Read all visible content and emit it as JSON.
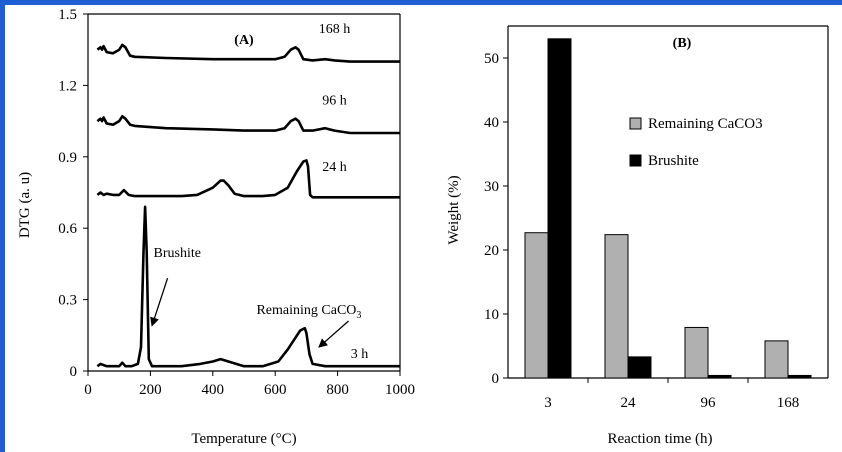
{
  "colors": {
    "frame": "#1f5fd6",
    "curve": "#000000",
    "remaining_bar": "#b0b0b0",
    "brushite_bar": "#000000"
  },
  "chart_data": [
    {
      "type": "line",
      "panel_label": "(A)",
      "xlabel": "Temperature (°C)",
      "ylabel": "DTG (a. u)",
      "xlim": [
        0,
        1000
      ],
      "ylim": [
        0,
        1.5
      ],
      "xticks": [
        "0",
        "200",
        "400",
        "600",
        "800",
        "1000"
      ],
      "yticks": [
        "0",
        "0.3",
        "0.6",
        "0.9",
        "1.2",
        "1.5"
      ],
      "grid": false,
      "series": [
        {
          "name": "3 h",
          "x": [
            30,
            40,
            50,
            60,
            80,
            100,
            110,
            120,
            140,
            160,
            170,
            178,
            183,
            188,
            195,
            205,
            230,
            300,
            360,
            400,
            425,
            450,
            500,
            560,
            610,
            640,
            660,
            680,
            695,
            700,
            710,
            720,
            760,
            840,
            1000
          ],
          "y": [
            0.02,
            0.03,
            0.025,
            0.02,
            0.02,
            0.02,
            0.035,
            0.02,
            0.02,
            0.03,
            0.1,
            0.5,
            0.69,
            0.5,
            0.05,
            0.02,
            0.02,
            0.02,
            0.03,
            0.04,
            0.05,
            0.04,
            0.02,
            0.02,
            0.04,
            0.09,
            0.13,
            0.17,
            0.18,
            0.16,
            0.07,
            0.03,
            0.02,
            0.02,
            0.02
          ]
        },
        {
          "name": "24 h",
          "x": [
            30,
            40,
            50,
            60,
            80,
            100,
            115,
            130,
            150,
            200,
            300,
            350,
            400,
            425,
            435,
            450,
            470,
            500,
            560,
            600,
            640,
            670,
            690,
            700,
            705,
            712,
            720,
            760,
            840,
            1000
          ],
          "y": [
            0.74,
            0.75,
            0.74,
            0.745,
            0.74,
            0.74,
            0.76,
            0.74,
            0.735,
            0.735,
            0.735,
            0.74,
            0.77,
            0.8,
            0.8,
            0.78,
            0.745,
            0.735,
            0.735,
            0.74,
            0.77,
            0.84,
            0.88,
            0.885,
            0.86,
            0.74,
            0.73,
            0.73,
            0.73,
            0.73
          ]
        },
        {
          "name": "96 h",
          "x": [
            30,
            40,
            45,
            50,
            60,
            80,
            100,
            110,
            120,
            135,
            150,
            250,
            400,
            500,
            600,
            630,
            650,
            665,
            675,
            690,
            720,
            760,
            790,
            840,
            1000
          ],
          "y": [
            1.05,
            1.06,
            1.05,
            1.065,
            1.04,
            1.035,
            1.05,
            1.07,
            1.06,
            1.035,
            1.03,
            1.02,
            1.015,
            1.01,
            1.01,
            1.02,
            1.05,
            1.06,
            1.05,
            1.01,
            1.01,
            1.02,
            1.01,
            1.0,
            1.0
          ]
        },
        {
          "name": "168 h",
          "x": [
            30,
            40,
            45,
            50,
            60,
            80,
            100,
            110,
            120,
            135,
            150,
            250,
            400,
            500,
            600,
            630,
            650,
            665,
            675,
            690,
            720,
            760,
            790,
            840,
            1000
          ],
          "y": [
            1.35,
            1.36,
            1.35,
            1.365,
            1.34,
            1.335,
            1.35,
            1.37,
            1.36,
            1.325,
            1.32,
            1.315,
            1.31,
            1.31,
            1.31,
            1.32,
            1.35,
            1.36,
            1.35,
            1.31,
            1.305,
            1.31,
            1.305,
            1.3,
            1.3
          ]
        }
      ],
      "curve_labels": [
        {
          "text": "168 h",
          "x": 790,
          "y": 1.42
        },
        {
          "text": "96 h",
          "x": 790,
          "y": 1.12
        },
        {
          "text": "24 h",
          "x": 790,
          "y": 0.84
        },
        {
          "text": "3 h",
          "x": 870,
          "y": 0.055
        }
      ],
      "annotations": [
        {
          "text": "Brushite",
          "x": 210,
          "y": 0.48,
          "arrow_from": [
            255,
            0.39
          ],
          "arrow_to": [
            205,
            0.19
          ]
        },
        {
          "text": "Remaining CaCO",
          "subscript": "3",
          "x": 540,
          "y": 0.24,
          "arrow_from": [
            835,
            0.21
          ],
          "arrow_to": [
            740,
            0.1
          ]
        }
      ]
    },
    {
      "type": "bar",
      "panel_label": "(B)",
      "xlabel": "Reaction time (h)",
      "ylabel": "Weight (%)",
      "categories": [
        "3",
        "24",
        "96",
        "168"
      ],
      "ylim": [
        0,
        55
      ],
      "yticks": [
        "0",
        "10",
        "20",
        "30",
        "40",
        "50"
      ],
      "grid": false,
      "legend_position": "center-right",
      "series": [
        {
          "name": "Remaining CaCO3",
          "values": [
            22.7,
            22.4,
            7.9,
            5.8
          ]
        },
        {
          "name": "Brushite",
          "values": [
            53.0,
            3.3,
            0.4,
            0.4
          ]
        }
      ]
    }
  ]
}
